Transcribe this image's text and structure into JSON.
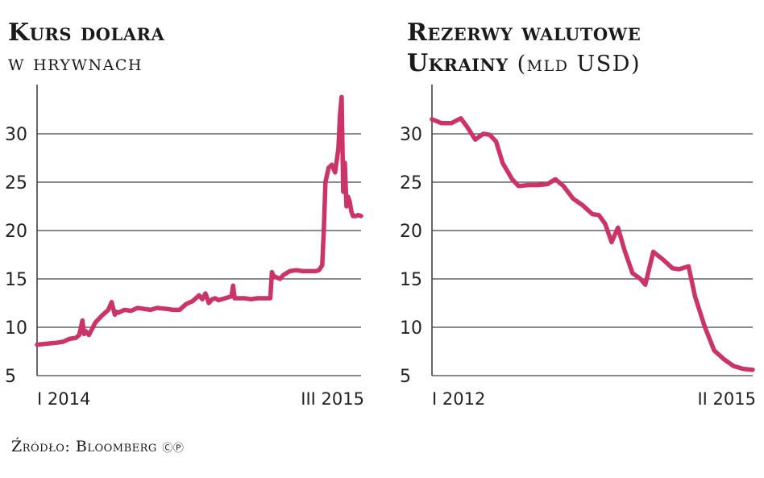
{
  "chart_data": [
    {
      "type": "line",
      "title": "Kurs dolara",
      "subtitle": "w hrywnach",
      "y_ticks": [
        "30",
        "25",
        "20",
        "15",
        "10",
        "5"
      ],
      "ylim": [
        5,
        33
      ],
      "x_tick_labels": [
        "I 2014",
        "III 2015"
      ],
      "grid": true,
      "line_color": "#cc3366",
      "series": [
        {
          "x": [
            0.0,
            0.03,
            0.06,
            0.08,
            0.1,
            0.12,
            0.13,
            0.14,
            0.145,
            0.15,
            0.16,
            0.18,
            0.2,
            0.22,
            0.23,
            0.24,
            0.245,
            0.25,
            0.27,
            0.29,
            0.31,
            0.33,
            0.35,
            0.37,
            0.4,
            0.42,
            0.44,
            0.46,
            0.48,
            0.5,
            0.51,
            0.52,
            0.53,
            0.54,
            0.55,
            0.56,
            0.58,
            0.6,
            0.605,
            0.61,
            0.62,
            0.64,
            0.66,
            0.68,
            0.7,
            0.72,
            0.725,
            0.73,
            0.75,
            0.76,
            0.78,
            0.8,
            0.82,
            0.84,
            0.86,
            0.87,
            0.88,
            0.885,
            0.89,
            0.9,
            0.91,
            0.92,
            0.93,
            0.935,
            0.94,
            0.945,
            0.95,
            0.955,
            0.96,
            0.965,
            0.97,
            0.975,
            0.98,
            0.985,
            0.99,
            1.0
          ],
          "values": [
            8.2,
            8.3,
            8.4,
            8.5,
            8.8,
            8.9,
            9.2,
            10.7,
            9.3,
            9.6,
            9.2,
            10.5,
            11.2,
            11.8,
            12.6,
            11.3,
            11.6,
            11.5,
            11.8,
            11.7,
            12.0,
            11.9,
            11.8,
            12.0,
            11.9,
            11.8,
            11.8,
            12.4,
            12.7,
            13.3,
            12.9,
            13.5,
            12.5,
            12.9,
            13.0,
            12.8,
            13.0,
            13.2,
            14.3,
            13.0,
            13.0,
            13.0,
            12.9,
            13.0,
            13.0,
            13.0,
            15.7,
            15.3,
            15.0,
            15.4,
            15.8,
            15.9,
            15.8,
            15.8,
            15.8,
            15.9,
            16.4,
            20.0,
            25.0,
            26.5,
            26.8,
            26.0,
            28.5,
            32.0,
            33.8,
            24.0,
            27.0,
            22.5,
            23.5,
            23.0,
            22.0,
            21.5,
            21.5,
            21.5,
            21.6,
            21.5
          ]
        }
      ]
    },
    {
      "type": "line",
      "title": "Rezerwy walutowe",
      "title2": "Ukrainy",
      "unit": "(mld USD)",
      "y_ticks": [
        "30",
        "25",
        "20",
        "15",
        "10",
        "5"
      ],
      "ylim": [
        5,
        33
      ],
      "x_tick_labels": [
        "I 2012",
        "II 2015"
      ],
      "grid": true,
      "line_color": "#cc3366",
      "series": [
        {
          "x": [
            0.0,
            0.03,
            0.06,
            0.09,
            0.11,
            0.135,
            0.16,
            0.18,
            0.2,
            0.22,
            0.25,
            0.27,
            0.3,
            0.33,
            0.36,
            0.385,
            0.41,
            0.44,
            0.47,
            0.5,
            0.52,
            0.54,
            0.56,
            0.58,
            0.6,
            0.625,
            0.65,
            0.665,
            0.69,
            0.72,
            0.75,
            0.77,
            0.8,
            0.82,
            0.85,
            0.88,
            0.91,
            0.94,
            0.97,
            1.0
          ],
          "values": [
            31.5,
            31.1,
            31.1,
            31.6,
            30.7,
            29.4,
            30.0,
            29.9,
            29.2,
            27.0,
            25.3,
            24.6,
            24.7,
            24.7,
            24.8,
            25.3,
            24.6,
            23.3,
            22.6,
            21.7,
            21.6,
            20.7,
            18.8,
            20.3,
            18.0,
            15.6,
            15.0,
            14.4,
            17.8,
            17.0,
            16.1,
            16.0,
            16.3,
            13.2,
            10.1,
            7.6,
            6.7,
            6.0,
            5.7,
            5.6
          ]
        }
      ]
    }
  ],
  "source": "Źródło: Bloomberg ⓒⓟ"
}
